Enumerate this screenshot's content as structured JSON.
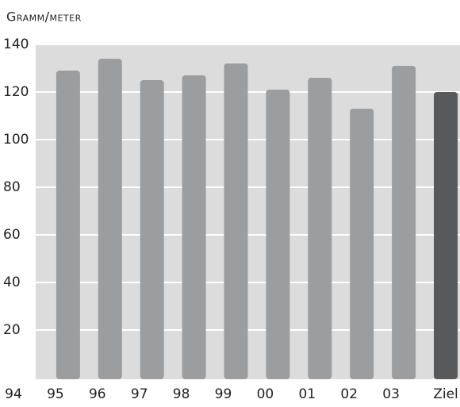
{
  "chart_data": {
    "type": "bar",
    "y_label": "Gramm/meter",
    "categories": [
      "94",
      "95",
      "96",
      "97",
      "98",
      "99",
      "00",
      "01",
      "02",
      "03",
      "Ziel"
    ],
    "values": [
      null,
      129,
      134,
      125,
      127,
      132,
      121,
      126,
      113,
      131,
      120
    ],
    "colors": [
      null,
      "#9b9d9f",
      "#9b9d9f",
      "#9b9d9f",
      "#9b9d9f",
      "#9b9d9f",
      "#9b9d9f",
      "#9b9d9f",
      "#9b9d9f",
      "#9b9d9f",
      "#58595b"
    ],
    "ylim": [
      0,
      140
    ],
    "yticks": [
      20,
      40,
      60,
      80,
      100,
      120,
      140
    ],
    "grid": true
  }
}
